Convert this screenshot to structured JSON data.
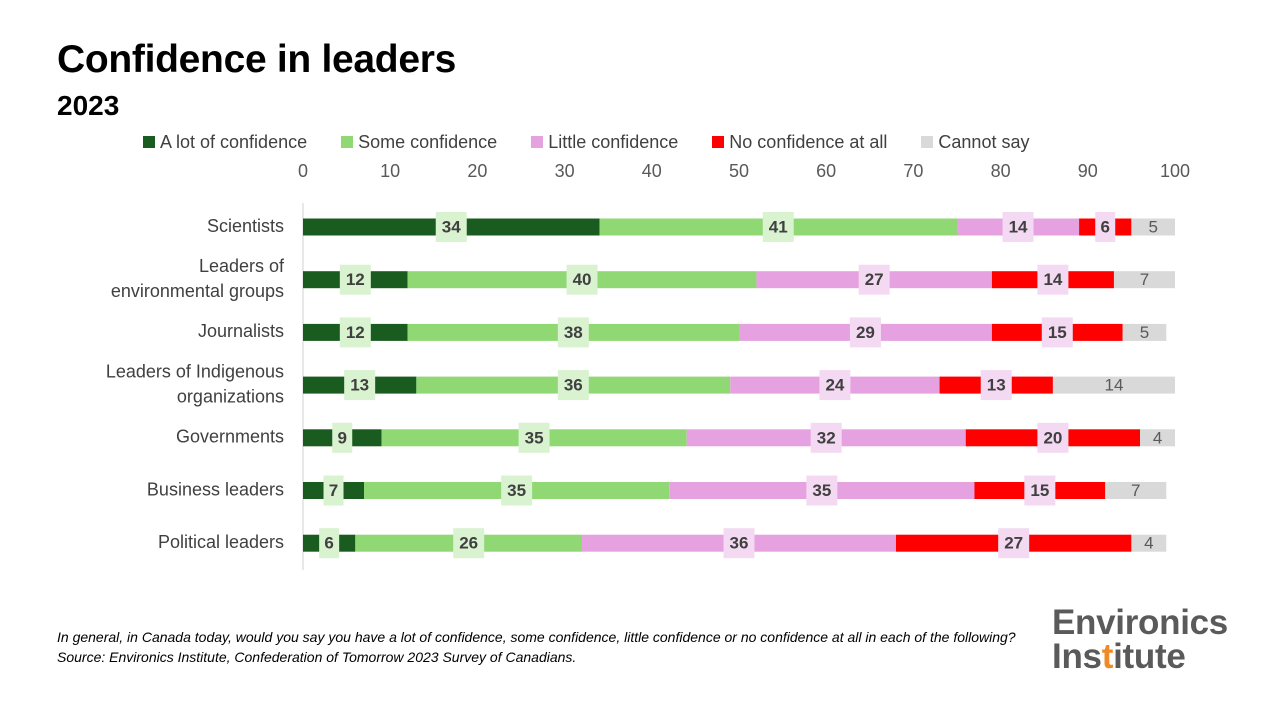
{
  "title": "Confidence in leaders",
  "subtitle": "2023",
  "footnote": "In general, in Canada today, would you say you have a lot of confidence, some confidence, little confidence or no confidence at all in each of the following?  Source: Environics Institute, Confederation of Tomorrow 2023 Survey of Canadians.",
  "logo": {
    "line1": "Environics",
    "line2": "Institute",
    "accent_color": "#f08a24"
  },
  "chart_data": {
    "type": "bar",
    "orientation": "horizontal",
    "stacked": true,
    "xlim": [
      0,
      100
    ],
    "x_ticks": [
      0,
      10,
      20,
      30,
      40,
      50,
      60,
      70,
      80,
      90,
      100
    ],
    "x_axis_position": "top",
    "grid": false,
    "legend_position": "top",
    "categories": [
      "Scientists",
      "Leaders of environmental groups",
      "Journalists",
      "Leaders of Indigenous organizations",
      "Governments",
      "Business leaders",
      "Political leaders"
    ],
    "series": [
      {
        "name": "A lot of confidence",
        "color": "#1a5c1f",
        "label_bg": "#d9f2d0",
        "values": [
          34,
          12,
          12,
          13,
          9,
          7,
          6
        ]
      },
      {
        "name": "Some confidence",
        "color": "#8fd873",
        "label_bg": "#d9f2d0",
        "values": [
          41,
          40,
          38,
          36,
          35,
          35,
          26
        ]
      },
      {
        "name": "Little confidence",
        "color": "#e6a1e0",
        "label_bg": "#f4d9f2",
        "values": [
          14,
          27,
          29,
          24,
          32,
          35,
          36
        ]
      },
      {
        "name": "No confidence at all",
        "color": "#ff0000",
        "label_bg": "#f4d9f2",
        "values": [
          6,
          14,
          15,
          13,
          20,
          15,
          27
        ]
      },
      {
        "name": "Cannot say",
        "color": "#d9d9d9",
        "label_bg": "none",
        "values": [
          5,
          7,
          5,
          14,
          4,
          7,
          4
        ]
      }
    ]
  }
}
